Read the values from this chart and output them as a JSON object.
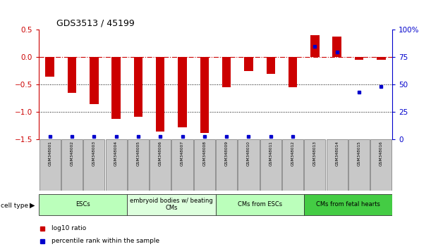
{
  "title": "GDS3513 / 45199",
  "samples": [
    "GSM348001",
    "GSM348002",
    "GSM348003",
    "GSM348004",
    "GSM348005",
    "GSM348006",
    "GSM348007",
    "GSM348008",
    "GSM348009",
    "GSM348010",
    "GSM348011",
    "GSM348012",
    "GSM348013",
    "GSM348014",
    "GSM348015",
    "GSM348016"
  ],
  "log10_ratio": [
    -0.35,
    -0.65,
    -0.85,
    -1.12,
    -1.08,
    -1.35,
    -1.28,
    -1.38,
    -0.55,
    -0.25,
    -0.3,
    -0.55,
    0.4,
    0.38,
    -0.04,
    -0.04
  ],
  "percentile_rank": [
    3,
    3,
    3,
    3,
    3,
    3,
    3,
    3,
    3,
    3,
    3,
    3,
    85,
    80,
    43,
    48
  ],
  "bar_color": "#cc0000",
  "dot_color": "#0000cc",
  "ylim_left": [
    -1.5,
    0.5
  ],
  "ylim_right": [
    0,
    100
  ],
  "yticks_left": [
    -1.5,
    -1.0,
    -0.5,
    0.0,
    0.5
  ],
  "yticks_right": [
    0,
    25,
    50,
    75,
    100
  ],
  "yticklabels_right": [
    "0",
    "25",
    "50",
    "75",
    "100%"
  ],
  "dotted_lines": [
    -0.5,
    -1.0
  ],
  "cell_groups": [
    {
      "label": "ESCs",
      "start": 0,
      "end": 3,
      "color": "#bbffbb"
    },
    {
      "label": "embryoid bodies w/ beating\nCMs",
      "start": 4,
      "end": 7,
      "color": "#ddffdd"
    },
    {
      "label": "CMs from ESCs",
      "start": 8,
      "end": 11,
      "color": "#bbffbb"
    },
    {
      "label": "CMs from fetal hearts",
      "start": 12,
      "end": 15,
      "color": "#44cc44"
    }
  ],
  "cell_type_label": "cell type",
  "legend_red_label": "log10 ratio",
  "legend_blue_label": "percentile rank within the sample",
  "bar_width": 0.4
}
